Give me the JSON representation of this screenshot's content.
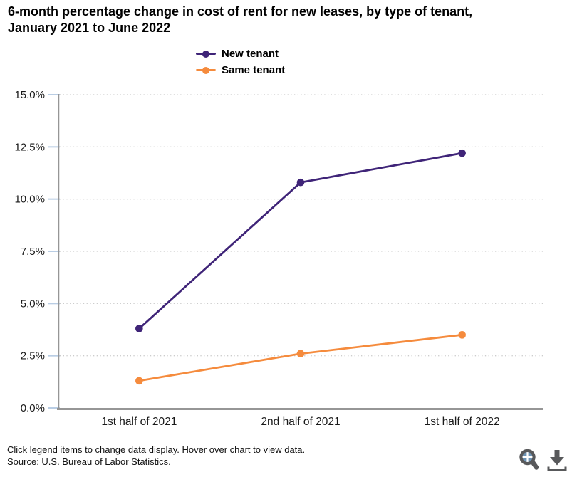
{
  "title_lines": [
    "6-month percentage change in cost of rent for new leases, by type of tenant,",
    "January 2021 to June 2022"
  ],
  "chart_data": {
    "type": "line",
    "title": "6-month percentage change in cost of rent for new leases, by type of tenant, January 2021 to June 2022",
    "categories": [
      "1st half of 2021",
      "2nd half of 2021",
      "1st half of 2022"
    ],
    "series": [
      {
        "name": "New tenant",
        "color": "#3f2478",
        "values": [
          3.8,
          10.8,
          12.2
        ]
      },
      {
        "name": "Same tenant",
        "color": "#f58b3d",
        "values": [
          1.3,
          2.6,
          3.5
        ]
      }
    ],
    "ylim": [
      0,
      15
    ],
    "ytick_values": [
      0,
      2.5,
      5,
      7.5,
      10,
      12.5,
      15
    ],
    "yticks": [
      "0.0%",
      "2.5%",
      "5.0%",
      "7.5%",
      "10.0%",
      "12.5%",
      "15.0%"
    ],
    "xlabel": "",
    "ylabel": "",
    "grid": "horizontal-dotted",
    "legend_position": "top-center"
  },
  "footer": {
    "hint": "Click legend items to change data display. Hover over chart to view data.",
    "source": "Source: U.S. Bureau of Labor Statistics."
  },
  "icons": {
    "zoom": "magnifier-with-quadrants",
    "download": "arrow-into-tray"
  },
  "colors": {
    "new_tenant": "#3f2478",
    "same_tenant": "#f58b3d",
    "axis": "#969696",
    "grid": "#cccccc",
    "tick": "#b9cde4",
    "text": "#1a1a1a",
    "icon": "#58595b",
    "icon_accent": "#6d93b5"
  }
}
